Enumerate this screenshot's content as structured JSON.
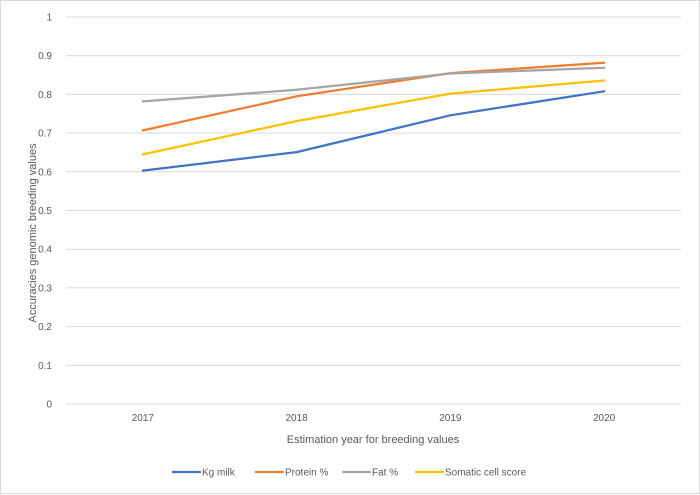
{
  "chart_data": {
    "type": "line",
    "title": "",
    "xlabel": "Estimation year for breeding values",
    "ylabel": "Accuracies genomic breeding values",
    "categories": [
      "2017",
      "2018",
      "2019",
      "2020"
    ],
    "ylim": [
      0,
      1
    ],
    "yticks": [
      0,
      0.1,
      0.2,
      0.3,
      0.4,
      0.5,
      0.6,
      0.7,
      0.8,
      0.9,
      1
    ],
    "ytick_labels": [
      "0",
      "0.1",
      "0.2",
      "0.3",
      "0.4",
      "0.5",
      "0.6",
      "0.7",
      "0.8",
      "0.9",
      "1"
    ],
    "grid": true,
    "legend_position": "bottom",
    "series": [
      {
        "name": "Kg milk",
        "color": "#4472c4",
        "values": [
          0.603,
          0.651,
          0.746,
          0.808
        ]
      },
      {
        "name": "Protein %",
        "color": "#ed7d31",
        "values": [
          0.707,
          0.795,
          0.855,
          0.882
        ]
      },
      {
        "name": "Fat %",
        "color": "#a5a5a5",
        "values": [
          0.782,
          0.812,
          0.854,
          0.869
        ]
      },
      {
        "name": "Somatic cell score",
        "color": "#ffc000",
        "values": [
          0.645,
          0.731,
          0.802,
          0.836
        ]
      }
    ]
  }
}
